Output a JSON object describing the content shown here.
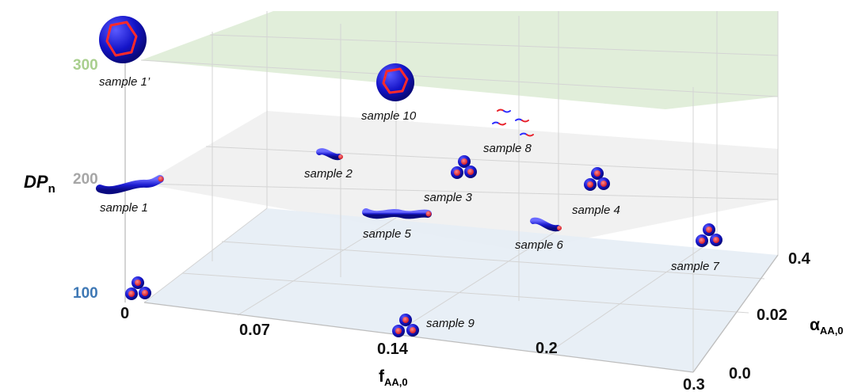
{
  "colors": {
    "plane_300": "#dcebd3",
    "plane_200": "#eeeeee",
    "plane_100": "#e6edf5",
    "dp_300": "#a9cf8e",
    "dp_200": "#a6a6a6",
    "dp_100": "#3e78b5",
    "particle_body": "#1414c8",
    "particle_core": "#e8202a"
  },
  "axes": {
    "dp_label_main": "DP",
    "dp_label_sub": "n",
    "f_label_main": "f",
    "f_label_sub": "AA,0",
    "alpha_label_main": "α",
    "alpha_label_sub": "AA,0",
    "dp_ticks": [
      "300",
      "200",
      "100"
    ],
    "f_ticks": [
      "0",
      "0.07",
      "0.14",
      "0.2",
      "0.3"
    ],
    "alpha_ticks": [
      "0.0",
      "0.02",
      "0.4"
    ]
  },
  "samples": [
    {
      "label": "sample 1’",
      "morphology": "vesicle"
    },
    {
      "label": "sample 10",
      "morphology": "vesicle"
    },
    {
      "label": "sample 8",
      "morphology": "unimers"
    },
    {
      "label": "sample 2",
      "morphology": "worm"
    },
    {
      "label": "sample 3",
      "morphology": "spheres"
    },
    {
      "label": "sample 4",
      "morphology": "spheres"
    },
    {
      "label": "sample 1",
      "morphology": "worm"
    },
    {
      "label": "sample 5",
      "morphology": "worm"
    },
    {
      "label": "sample 6",
      "morphology": "worm"
    },
    {
      "label": "sample 7",
      "morphology": "spheres"
    },
    {
      "label": "sample 9",
      "morphology": "spheres"
    },
    {
      "label": "",
      "morphology": "spheres"
    }
  ]
}
